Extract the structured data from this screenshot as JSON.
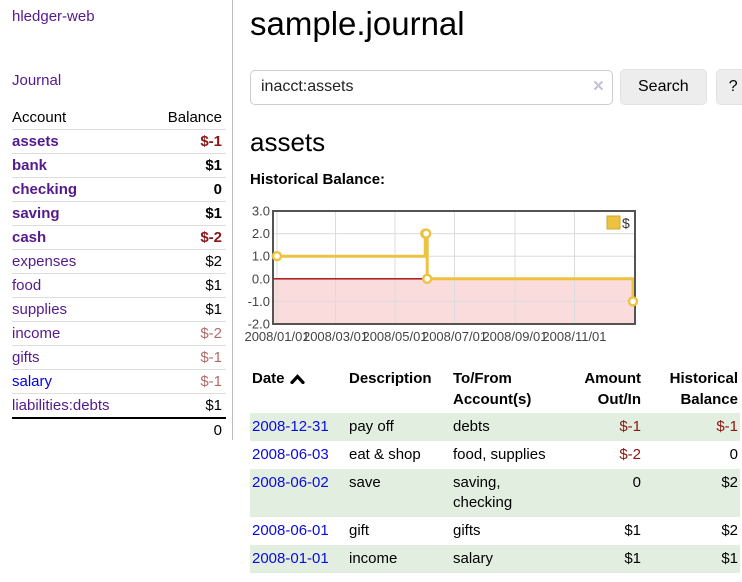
{
  "sidebar": {
    "app_title": "hledger-web",
    "nav_journal": "Journal",
    "accounts_table": {
      "col_account": "Account",
      "col_balance": "Balance",
      "rows": [
        {
          "name": "assets",
          "indent": 1,
          "bold": true,
          "link_color": "purple",
          "balance": "$-1",
          "balance_style": "neg-strong"
        },
        {
          "name": "bank",
          "indent": 2,
          "bold": true,
          "link_color": "purple",
          "balance": "$1",
          "balance_style": "plain"
        },
        {
          "name": "checking",
          "indent": 3,
          "bold": true,
          "link_color": "purple",
          "balance": "0",
          "balance_style": "plain"
        },
        {
          "name": "saving",
          "indent": 3,
          "bold": true,
          "link_color": "purple",
          "balance": "$1",
          "balance_style": "plain"
        },
        {
          "name": "cash",
          "indent": 2,
          "bold": true,
          "link_color": "purple",
          "balance": "$-2",
          "balance_style": "neg-strong"
        },
        {
          "name": "expenses",
          "indent": 1,
          "bold": false,
          "link_color": "purple",
          "balance": "$2",
          "balance_style": "plain"
        },
        {
          "name": "food",
          "indent": 2,
          "bold": false,
          "link_color": "purple",
          "balance": "$1",
          "balance_style": "plain"
        },
        {
          "name": "supplies",
          "indent": 2,
          "bold": false,
          "link_color": "purple",
          "balance": "$1",
          "balance_style": "plain"
        },
        {
          "name": "income",
          "indent": 1,
          "bold": false,
          "link_color": "purple",
          "balance": "$-2",
          "balance_style": "neg-soft"
        },
        {
          "name": "gifts",
          "indent": 2,
          "bold": false,
          "link_color": "purple",
          "balance": "$-1",
          "balance_style": "neg-soft"
        },
        {
          "name": "salary",
          "indent": 2,
          "bold": false,
          "link_color": "blue",
          "balance": "$-1",
          "balance_style": "neg-soft"
        },
        {
          "name": "liabilities:debts",
          "indent": 1,
          "bold": false,
          "link_color": "purple",
          "balance": "$1",
          "balance_style": "plain"
        }
      ],
      "total": "0"
    }
  },
  "main": {
    "title": "sample.journal",
    "search": {
      "value": "inacct:assets",
      "clear_icon": "×",
      "search_label": "Search",
      "help_label": "?"
    },
    "account_heading": "assets",
    "chart_label": "Historical Balance:"
  },
  "chart_data": {
    "type": "line",
    "step": true,
    "series": [
      {
        "name": "$",
        "color": "#edc240",
        "points": [
          {
            "date": "2008-01-01",
            "value": 1
          },
          {
            "date": "2008-06-01",
            "value": 2
          },
          {
            "date": "2008-06-02",
            "value": 2
          },
          {
            "date": "2008-06-03",
            "value": 0
          },
          {
            "date": "2008-12-31",
            "value": -1
          }
        ]
      }
    ],
    "x_ticks": [
      {
        "date": "2008-01-01",
        "label": "2008/01/01"
      },
      {
        "date": "2008-03-01",
        "label": "2008/03/01"
      },
      {
        "date": "2008-05-01",
        "label": "2008/05/01"
      },
      {
        "date": "2008-07-01",
        "label": "2008/07/01"
      },
      {
        "date": "2008-09-01",
        "label": "2008/09/01"
      },
      {
        "date": "2008-11-01",
        "label": "2008/11/01"
      }
    ],
    "y_ticks": [
      "3.0",
      "2.0",
      "1.0",
      "0.0",
      "-1.0",
      "-2.0"
    ],
    "ylim": [
      -2,
      3
    ],
    "xlim": [
      "2008-01-01",
      "2008-12-31"
    ],
    "legend": {
      "label": "$",
      "position": "top-right"
    },
    "grid": true,
    "colors": {
      "line": "#edc240",
      "marker_fill": "#ffffff",
      "negative_region": "#fadcdc",
      "zero_line": "#a40000",
      "gridline": "#dcdcdc",
      "border": "#545454",
      "tick_text": "#444444"
    }
  },
  "transactions": {
    "headers": {
      "date": "Date",
      "description": "Description",
      "tofrom": "To/From Account(s)",
      "amount": "Amount Out/In",
      "historical": "Historical Balance",
      "sort": "ascending"
    },
    "rows": [
      {
        "date": "2008-12-31",
        "description": "pay off",
        "accounts": "debts",
        "amount": "$-1",
        "amount_neg": true,
        "historical": "$-1",
        "historical_neg": true
      },
      {
        "date": "2008-06-03",
        "description": "eat & shop",
        "accounts": "food, supplies",
        "amount": "$-2",
        "amount_neg": true,
        "historical": "0",
        "historical_neg": false
      },
      {
        "date": "2008-06-02",
        "description": "save",
        "accounts": "saving, checking",
        "amount": "0",
        "amount_neg": false,
        "historical": "$2",
        "historical_neg": false
      },
      {
        "date": "2008-06-01",
        "description": "gift",
        "accounts": "gifts",
        "amount": "$1",
        "amount_neg": false,
        "historical": "$2",
        "historical_neg": false
      },
      {
        "date": "2008-01-01",
        "description": "income",
        "accounts": "salary",
        "amount": "$1",
        "amount_neg": false,
        "historical": "$1",
        "historical_neg": false
      }
    ]
  },
  "colors": {
    "link_visited_purple": "#551a8b",
    "link_blue": "#0000dd",
    "negative_strong": "#8b1414",
    "negative_soft": "#b26b6b",
    "row_green": "#e2efe0",
    "button_bg": "#ededed"
  }
}
